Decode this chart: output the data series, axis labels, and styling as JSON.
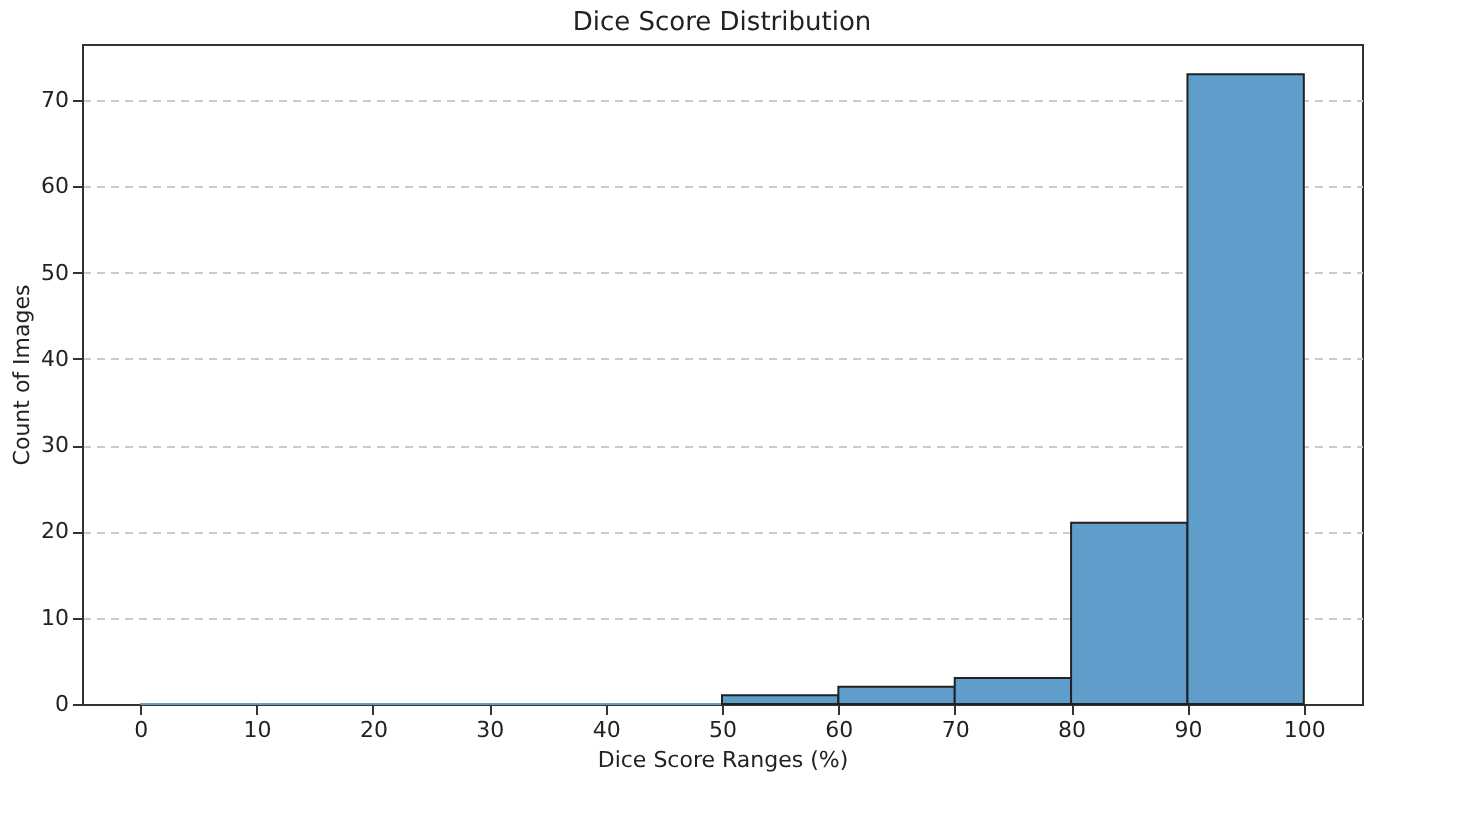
{
  "chart_data": {
    "type": "histogram",
    "title": "Dice Score Distribution",
    "xlabel": "Dice Score Ranges (%)",
    "ylabel": "Count of Images",
    "bins": [
      0,
      10,
      20,
      30,
      40,
      50,
      60,
      70,
      80,
      90,
      100
    ],
    "values": [
      0,
      0,
      0,
      0,
      0,
      1,
      2,
      3,
      21,
      73
    ],
    "color": "#5f9ecb",
    "xlim": [
      -5,
      105
    ],
    "xticks": [
      0,
      10,
      20,
      30,
      40,
      50,
      60,
      70,
      80,
      90,
      100
    ],
    "ylim": [
      0,
      76.5
    ],
    "yticks": [
      0,
      10,
      20,
      30,
      40,
      50,
      60,
      70
    ],
    "grid": "y"
  }
}
